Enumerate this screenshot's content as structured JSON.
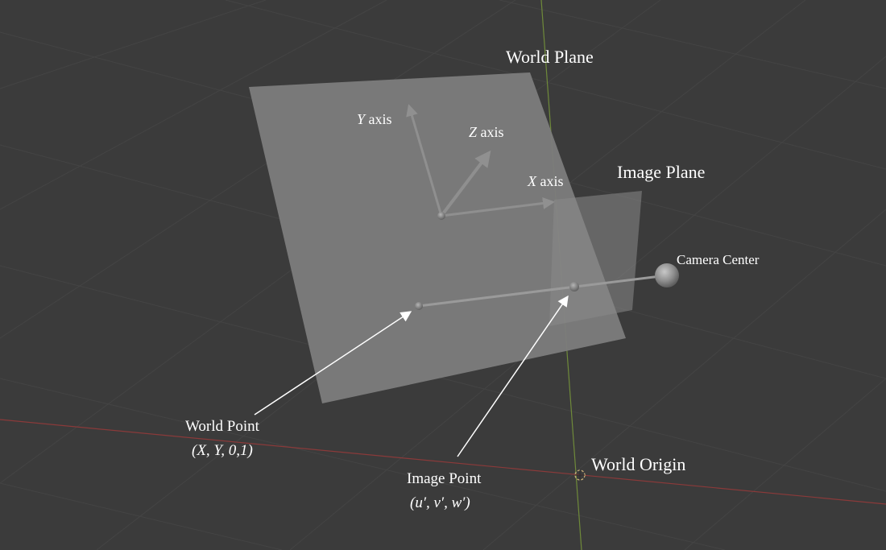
{
  "labels": {
    "world_plane": "World Plane",
    "image_plane": "Image Plane",
    "camera_center": "Camera Center",
    "world_origin": "World Origin",
    "world_point": "World Point",
    "world_point_coords": "(X, Y, 0,1)",
    "image_point": "Image Point",
    "image_point_coords": "(u′, v′, w′)",
    "y_axis_var": "Y",
    "y_axis_word": " axis",
    "z_axis_var": "Z",
    "z_axis_word": " axis",
    "x_axis_var": "X",
    "x_axis_word": " axis"
  },
  "colors": {
    "background": "#3b3b3b",
    "grid": "#444444",
    "world_plane": "#7c7c7c",
    "image_plane": "#8a8a8a",
    "vertical_axis": "#6f8a3a",
    "horizontal_axis": "#8a3a3a",
    "arrow": "#ffffff",
    "label": "#ffffff",
    "gizmo": "#c9b07a"
  }
}
